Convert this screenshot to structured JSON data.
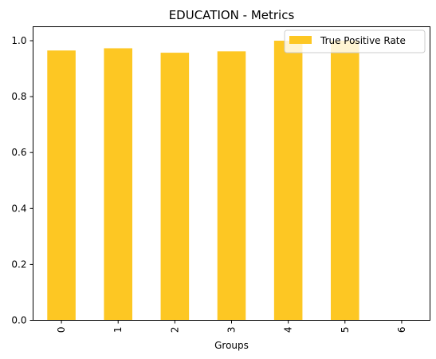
{
  "chart_data": {
    "type": "bar",
    "title": "EDUCATION - Metrics",
    "xlabel": "Groups",
    "ylabel": "",
    "categories": [
      "0",
      "1",
      "2",
      "3",
      "4",
      "5",
      "6"
    ],
    "series": [
      {
        "name": "True Positive Rate",
        "values": [
          0.965,
          0.973,
          0.957,
          0.962,
          1.0,
          1.0,
          0.0
        ],
        "color": "#fdc723"
      }
    ],
    "ylim": [
      0,
      1.05
    ],
    "yticks": [
      "0.0",
      "0.2",
      "0.4",
      "0.6",
      "0.8",
      "1.0"
    ],
    "grid": false,
    "legend_position": "top-right"
  }
}
